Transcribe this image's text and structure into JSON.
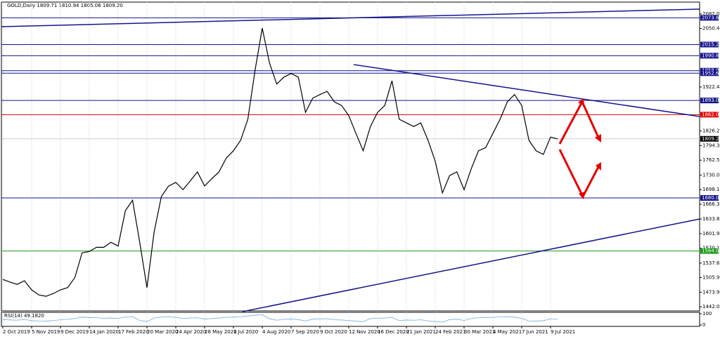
{
  "chart_data": {
    "type": "line",
    "title": "GOLD,Daily  1809.71 1810.94 1805.06 1809.20",
    "categories": [
      "2 Oct 2019",
      null,
      null,
      null,
      "5 Nov 2019",
      null,
      null,
      null,
      "9 Dec 2019",
      null,
      null,
      null,
      "14 Jan 2020",
      null,
      null,
      null,
      "17 Feb 2020",
      null,
      null,
      null,
      "20 Mar 2020",
      null,
      null,
      null,
      "24 Apr 2020",
      null,
      null,
      null,
      "28 May 2020",
      null,
      null,
      null,
      "1 Jul 2020",
      null,
      null,
      null,
      "4 Aug 2020",
      null,
      null,
      null,
      "7 Sep 2020",
      null,
      null,
      null,
      "9 Oct 2020",
      null,
      null,
      null,
      "12 Nov 2020",
      null,
      null,
      null,
      "16 Dec 2020",
      null,
      null,
      null,
      "21 Jan 2021",
      null,
      null,
      null,
      "24 Feb 2021",
      null,
      null,
      null,
      "30 Mar 2021",
      null,
      null,
      null,
      "4 May 2021",
      null,
      null,
      null,
      "7 Jun 2021",
      null,
      null,
      null,
      "9 Jul 2021",
      null
    ],
    "series": [
      {
        "name": "GOLD",
        "color": "#000000",
        "values": [
          1502,
          1496,
          1491,
          1499,
          1479,
          1468,
          1465,
          1471,
          1479,
          1484,
          1506,
          1560,
          1563,
          1572,
          1572,
          1583,
          1575,
          1652,
          1675,
          1583,
          1484,
          1606,
          1683,
          1706,
          1714,
          1698,
          1717,
          1737,
          1706,
          1722,
          1737,
          1767,
          1783,
          1806,
          1852,
          1959,
          2051,
          1975,
          1929,
          1944,
          1952,
          1944,
          1867,
          1898,
          1906,
          1913,
          1890,
          1882,
          1860,
          1821,
          1783,
          1836,
          1867,
          1882,
          1936,
          1852,
          1844,
          1836,
          1844,
          1806,
          1760,
          1691,
          1729,
          1737,
          1698,
          1744,
          1783,
          1790,
          1821,
          1852,
          1890,
          1906,
          1882,
          1806,
          1783,
          1775,
          1813,
          1809
        ]
      }
    ],
    "ylim": [
      1433,
      2108
    ],
    "yticks": [
      2082.05,
      2050.45,
      1922.4,
      1826.2,
      1794.35,
      1762.5,
      {
        "value": 1730,
        "label": "1730.00"
      },
      1698.15,
      1666.3,
      1633.8,
      1601.95,
      1570.1,
      1537.6,
      1505.9,
      1473.9,
      1442.05
    ],
    "grid": true,
    "levels": [
      {
        "value": 2073.68,
        "color": "#14148c"
      },
      {
        "value": 2015.25,
        "color": "#14148c"
      },
      {
        "value": 1990.86,
        "color": "#14148c"
      },
      {
        "value": 1958.08,
        "color": "#14148c"
      },
      {
        "value": 1952.65,
        "color": "#14148c"
      },
      {
        "value": 1893,
        "label": "1893.00",
        "color": "#14148c"
      },
      {
        "value": 1862,
        "label": "1862.00",
        "color": "#e00000"
      },
      {
        "value": 1809.2,
        "label": "1809.20",
        "color": "#000000"
      },
      {
        "value": 1680,
        "label": "1680.00",
        "color": "#14148c"
      },
      {
        "value": 1564,
        "label": "1564.00",
        "color": "#1a9a1a"
      }
    ],
    "rsi": {
      "title": "RSI(14) 49.1820",
      "color": "#6fa8dc",
      "ylim": [
        0,
        100
      ],
      "yticks": [
        100,
        0
      ],
      "values": [
        48,
        45,
        42,
        50,
        38,
        35,
        34,
        40,
        46,
        50,
        58,
        70,
        66,
        64,
        60,
        62,
        58,
        72,
        74,
        40,
        30,
        62,
        70,
        72,
        68,
        58,
        62,
        64,
        52,
        58,
        62,
        68,
        70,
        72,
        80,
        88,
        90,
        55,
        42,
        50,
        52,
        48,
        36,
        52,
        54,
        56,
        46,
        44,
        40,
        34,
        30,
        56,
        60,
        62,
        68,
        40,
        44,
        42,
        46,
        36,
        30,
        26,
        48,
        52,
        40,
        58,
        64,
        66,
        68,
        72,
        74,
        70,
        58,
        36,
        34,
        38,
        54,
        49
      ]
    }
  }
}
